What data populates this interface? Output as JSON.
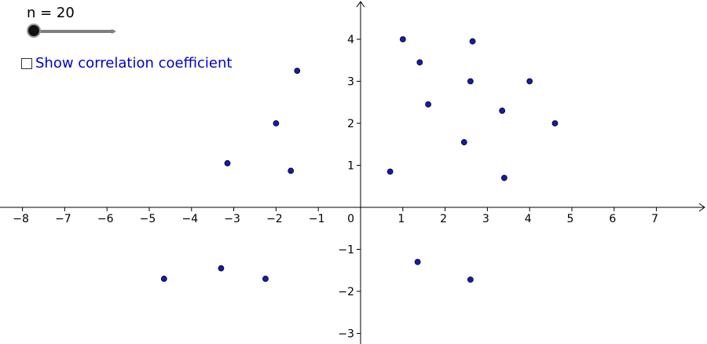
{
  "slider": {
    "label": "n = 20",
    "value": 20
  },
  "checkbox": {
    "label": "Show correlation coefficient",
    "checked": false
  },
  "colors": {
    "point": "#1a1aa6",
    "axis": "#000000"
  },
  "chart_data": {
    "type": "scatter",
    "xlim": [
      -8.5,
      8.1
    ],
    "ylim": [
      -3.2,
      4.9
    ],
    "x_ticks": [
      -8,
      -7,
      -6,
      -5,
      -4,
      -3,
      -2,
      -1,
      1,
      2,
      3,
      4,
      5,
      6,
      7
    ],
    "y_ticks": [
      -3,
      -2,
      -1,
      1,
      2,
      3,
      4
    ],
    "x_tick_labels": [
      "−8",
      "−7",
      "−6",
      "−5",
      "−4",
      "−3",
      "−2",
      "−1",
      "1",
      "2",
      "3",
      "4",
      "5",
      "6",
      "7"
    ],
    "y_tick_labels": [
      "−3",
      "−2",
      "−1",
      "1",
      "2",
      "3",
      "4"
    ],
    "origin_label": "0",
    "points": [
      {
        "x": 1.0,
        "y": 4.0
      },
      {
        "x": 2.65,
        "y": 3.95
      },
      {
        "x": 1.4,
        "y": 3.45
      },
      {
        "x": -1.5,
        "y": 3.25
      },
      {
        "x": 2.6,
        "y": 3.0
      },
      {
        "x": 4.0,
        "y": 3.0
      },
      {
        "x": 1.6,
        "y": 2.45
      },
      {
        "x": 3.35,
        "y": 2.3
      },
      {
        "x": -2.0,
        "y": 2.0
      },
      {
        "x": 4.6,
        "y": 2.0
      },
      {
        "x": 2.45,
        "y": 1.55
      },
      {
        "x": -3.15,
        "y": 1.05
      },
      {
        "x": -1.65,
        "y": 0.87
      },
      {
        "x": 0.7,
        "y": 0.85
      },
      {
        "x": 3.4,
        "y": 0.7
      },
      {
        "x": 1.35,
        "y": -1.3
      },
      {
        "x": -3.3,
        "y": -1.45
      },
      {
        "x": -4.65,
        "y": -1.7
      },
      {
        "x": -2.25,
        "y": -1.7
      },
      {
        "x": 2.6,
        "y": -1.72
      }
    ]
  }
}
